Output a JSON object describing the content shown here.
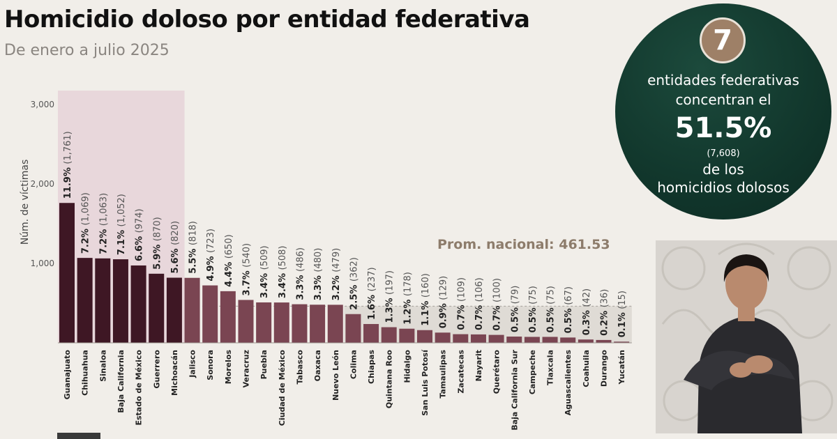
{
  "header": {
    "title": "Homicidio doloso por entidad federativa",
    "subtitle": "De enero a julio 2025"
  },
  "summary_circle": {
    "number": "7",
    "line1": "entidades federativas",
    "line2": "concentran el",
    "percent": "51.5%",
    "count": "(7,608)",
    "line3": "de los",
    "line4": "homicidios dolosos"
  },
  "colors": {
    "highlight_bar": "#3e1724",
    "regular_bar": "#7a4552",
    "highlight_region": "#e8d7db",
    "below_average_region": "#dfdbd5",
    "circle_green": "#12382d",
    "badge": "#9e8067",
    "average_label": "#8d7c6b"
  },
  "chart_data": {
    "type": "bar",
    "ylabel": "Núm. de víctimas",
    "ylim": [
      0,
      3000
    ],
    "yticks": [
      {
        "value": 1000,
        "label": "1,000"
      },
      {
        "value": 2000,
        "label": "2,000"
      },
      {
        "value": 3000,
        "label": "3,000"
      }
    ],
    "average_value": 461.53,
    "average_label": "Prom. nacional: 461.53",
    "highlighted_count": 7,
    "categories": [
      "Guanajuato",
      "Chihuahua",
      "Sinaloa",
      "Baja California",
      "Estado de México",
      "Guerrero",
      "Michoacán",
      "Jalisco",
      "Sonora",
      "Morelos",
      "Veracruz",
      "Puebla",
      "Ciudad de México",
      "Tabasco",
      "Oaxaca",
      "Nuevo León",
      "Colima",
      "Chiapas",
      "Quintana Roo",
      "Hidalgo",
      "San Luis Potosí",
      "Tamaulipas",
      "Zacatecas",
      "Nayarit",
      "Querétaro",
      "Baja California Sur",
      "Campeche",
      "Tlaxcala",
      "Aguascalientes",
      "Coahuila",
      "Durango",
      "Yucatán"
    ],
    "values": [
      1761,
      1069,
      1063,
      1052,
      974,
      870,
      820,
      818,
      723,
      650,
      540,
      509,
      508,
      486,
      480,
      479,
      362,
      237,
      197,
      178,
      160,
      129,
      109,
      106,
      100,
      79,
      75,
      75,
      67,
      42,
      36,
      15
    ],
    "percents": [
      "11.9%",
      "7.2%",
      "7.2%",
      "7.1%",
      "6.6%",
      "5.9%",
      "5.6%",
      "5.5%",
      "4.9%",
      "4.4%",
      "3.7%",
      "3.4%",
      "3.4%",
      "3.3%",
      "3.3%",
      "3.2%",
      "2.5%",
      "1.6%",
      "1.3%",
      "1.2%",
      "1.1%",
      "0.9%",
      "0.7%",
      "0.7%",
      "0.7%",
      "0.5%",
      "0.5%",
      "0.5%",
      "0.5%",
      "0.3%",
      "0.2%",
      "0.1%"
    ],
    "value_labels": [
      "(1,761)",
      "(1,069)",
      "(1,063)",
      "(1,052)",
      "(974)",
      "(870)",
      "(820)",
      "(818)",
      "(723)",
      "(650)",
      "(540)",
      "(509)",
      "(508)",
      "(486)",
      "(480)",
      "(479)",
      "(362)",
      "(237)",
      "(197)",
      "(178)",
      "(160)",
      "(129)",
      "(109)",
      "(106)",
      "(100)",
      "(79)",
      "(75)",
      "(75)",
      "(67)",
      "(42)",
      "(36)",
      "(15)"
    ]
  }
}
